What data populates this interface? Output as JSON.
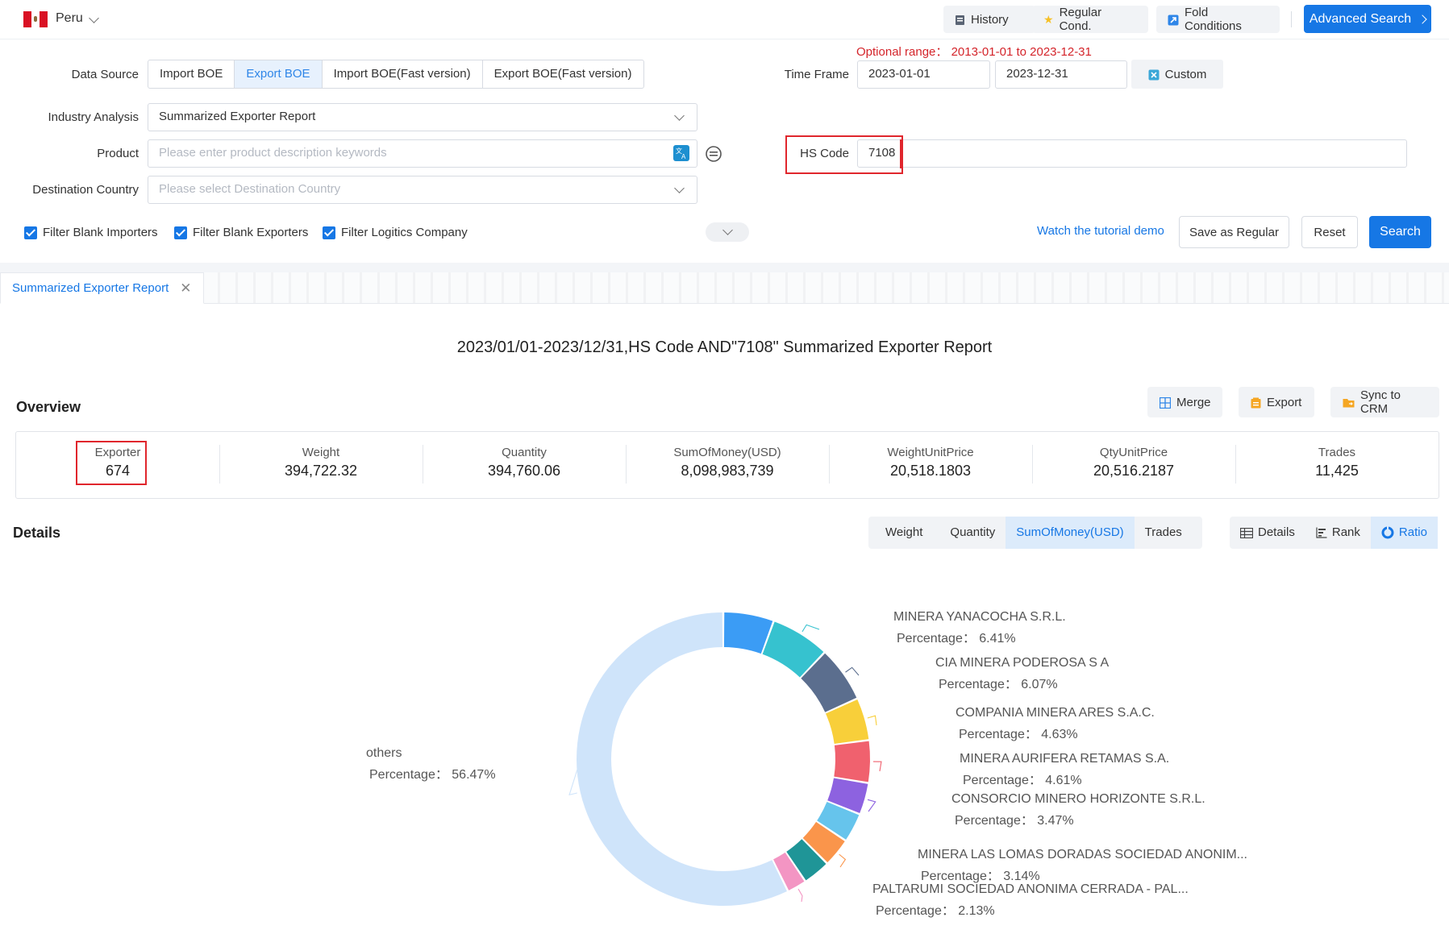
{
  "topbar": {
    "country": "Peru",
    "history": "History",
    "regular_cond": "Regular Cond.",
    "fold_conditions": "Fold Conditions",
    "advanced_search": "Advanced Search"
  },
  "form": {
    "data_source_label": "Data Source",
    "data_source_options": [
      "Import BOE",
      "Export BOE",
      "Import BOE(Fast version)",
      "Export BOE(Fast version)"
    ],
    "data_source_selected": "Export BOE",
    "optional_range": "Optional range： 2013-01-01 to 2023-12-31",
    "time_frame_label": "Time Frame",
    "start_date": "2023-01-01",
    "end_date": "2023-12-31",
    "custom": "Custom",
    "industry_label": "Industry Analysis",
    "industry_value": "Summarized Exporter Report",
    "product_label": "Product",
    "product_placeholder": "Please enter product description keywords",
    "hs_code_label": "HS Code",
    "hs_code_value": "7108",
    "destination_label": "Destination Country",
    "destination_placeholder": "Please select Destination Country",
    "filter_blank_importers": "Filter Blank Importers",
    "filter_blank_exporters": "Filter Blank Exporters",
    "filter_logistics": "Filter Logitics Company",
    "tutorial_link": "Watch the tutorial demo",
    "save_regular": "Save as Regular",
    "reset": "Reset",
    "search": "Search"
  },
  "tab": {
    "label": "Summarized Exporter Report"
  },
  "report": {
    "title": "2023/01/01-2023/12/31,HS Code AND\"7108\" Summarized Exporter Report",
    "overview_heading": "Overview",
    "merge": "Merge",
    "export": "Export",
    "sync_crm": "Sync to CRM",
    "stats": [
      {
        "label": "Exporter",
        "value": "674"
      },
      {
        "label": "Weight",
        "value": "394,722.32"
      },
      {
        "label": "Quantity",
        "value": "394,760.06"
      },
      {
        "label": "SumOfMoney(USD)",
        "value": "8,098,983,739"
      },
      {
        "label": "WeightUnitPrice",
        "value": "20,518.1803"
      },
      {
        "label": "QtyUnitPrice",
        "value": "20,516.2187"
      },
      {
        "label": "Trades",
        "value": "11,425"
      }
    ],
    "details_heading": "Details",
    "metric_tabs": [
      "Weight",
      "Quantity",
      "SumOfMoney(USD)",
      "Trades"
    ],
    "metric_selected": "SumOfMoney(USD)",
    "view_tabs": [
      "Details",
      "Rank",
      "Ratio"
    ],
    "view_selected": "Ratio"
  },
  "chart_data": {
    "type": "pie",
    "variant": "donut",
    "percentage_prefix": "Percentage：",
    "slices": [
      {
        "name": "",
        "value": 5.5,
        "color": "#3b9cf5"
      },
      {
        "name": "MINERA YANACOCHA S.R.L.",
        "value": 6.41,
        "label": "6.41%",
        "color": "#36c2cf"
      },
      {
        "name": "CIA MINERA PODEROSA S A",
        "value": 6.07,
        "label": "6.07%",
        "color": "#5b6e8e"
      },
      {
        "name": "COMPANIA MINERA ARES S.A.C.",
        "value": 4.63,
        "label": "4.63%",
        "color": "#f8cf3a"
      },
      {
        "name": "MINERA AURIFERA RETAMAS S.A.",
        "value": 4.61,
        "label": "4.61%",
        "color": "#f0616e"
      },
      {
        "name": "CONSORCIO MINERO HORIZONTE S.R.L.",
        "value": 3.47,
        "label": "3.47%",
        "color": "#8d62e0"
      },
      {
        "name": "",
        "value": 3.2,
        "color": "#66c4ec"
      },
      {
        "name": "MINERA LAS LOMAS DORADAS SOCIEDAD ANONIM...",
        "value": 3.14,
        "label": "3.14%",
        "color": "#fa954b"
      },
      {
        "name": "",
        "value": 3.0,
        "color": "#1f9597"
      },
      {
        "name": "PALTARUMI SOCIEDAD ANONIMA CERRADA - PAL...",
        "value": 2.13,
        "label": "2.13%",
        "color": "#f395c3"
      },
      {
        "name": "others",
        "value": 56.47,
        "label": "56.47%",
        "color": "#cfe4fa"
      }
    ]
  }
}
